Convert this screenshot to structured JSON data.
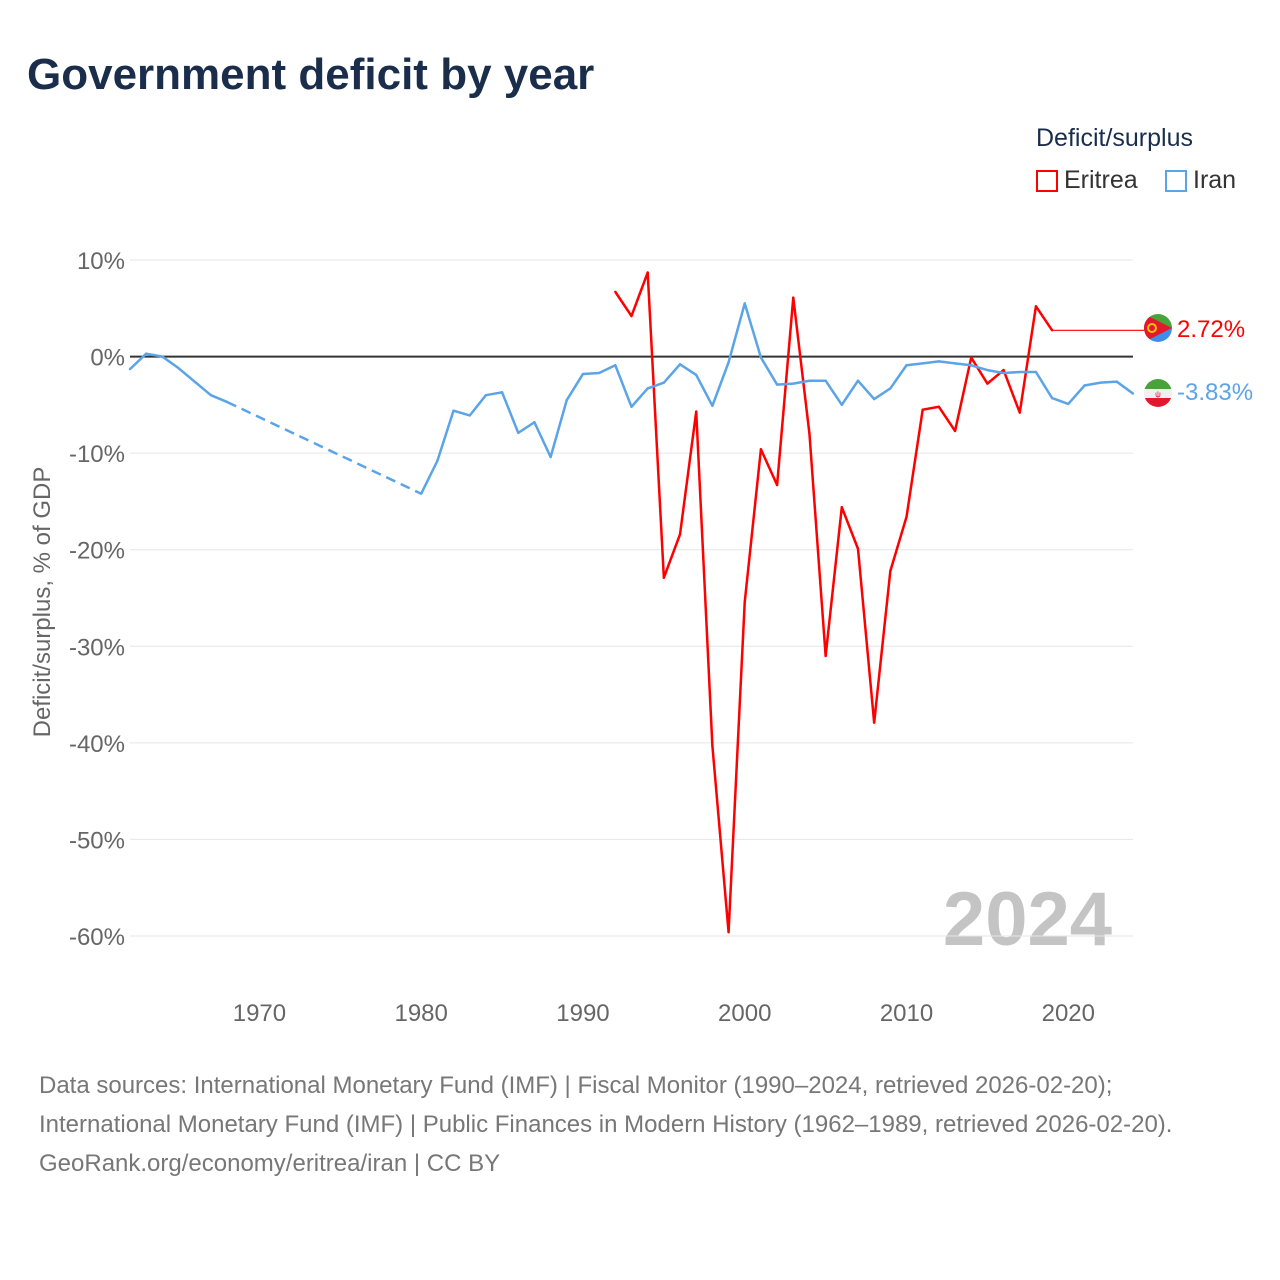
{
  "title": "Government deficit by year",
  "legend": {
    "title": "Deficit/surplus",
    "items": [
      {
        "name": "Eritrea",
        "color": "#ff0000"
      },
      {
        "name": "Iran",
        "color": "#5ba4e8"
      }
    ]
  },
  "watermark_year": "2024",
  "end_labels": {
    "eritrea": "2.72%",
    "iran": "-3.83%"
  },
  "flags": {
    "eritrea": "eritrea-flag-icon",
    "iran": "iran-flag-icon"
  },
  "sources": {
    "line1": "Data sources: International Monetary Fund (IMF) | Fiscal Monitor (1990–2024, retrieved 2026-02-20);",
    "line2": "International Monetary Fund (IMF) | Public Finances in Modern History (1962–1989, retrieved 2026-02-20).",
    "credit": "GeoRank.org/economy/eritrea/iran | CC BY"
  },
  "chart_data": {
    "type": "line",
    "title": "Government deficit by year",
    "xlabel": "",
    "ylabel": "Deficit/surplus, % of GDP",
    "xlim": [
      1962,
      2024
    ],
    "ylim": [
      -60,
      10
    ],
    "xticks": [
      1970,
      1980,
      1990,
      2000,
      2010,
      2020
    ],
    "xtick_labels": [
      "1970",
      "1980",
      "1990",
      "2000",
      "2010",
      "2020"
    ],
    "yticks": [
      10,
      0,
      -10,
      -20,
      -30,
      -40,
      -50,
      -60
    ],
    "ytick_labels": [
      "10%",
      "0%",
      "-10%",
      "-20%",
      "-30%",
      "-40%",
      "-50%",
      "-60%"
    ],
    "grid": true,
    "legend_position": "top-right",
    "series": [
      {
        "name": "Eritrea",
        "color": "#ff0000",
        "x": [
          1992,
          1993,
          1994,
          1995,
          1996,
          1997,
          1998,
          1999,
          2000,
          2001,
          2002,
          2003,
          2004,
          2005,
          2006,
          2007,
          2008,
          2009,
          2010,
          2011,
          2012,
          2013,
          2014,
          2015,
          2016,
          2017,
          2018,
          2019
        ],
        "values": [
          6.7,
          4.2,
          8.7,
          -22.9,
          -18.4,
          -5.7,
          -40.3,
          -59.6,
          -25.4,
          -9.6,
          -13.3,
          6.1,
          -8.0,
          -31.0,
          -15.6,
          -19.9,
          -37.9,
          -22.2,
          -16.6,
          -5.5,
          -5.2,
          -7.7,
          -0.1,
          -2.8,
          -1.4,
          -5.8,
          5.2,
          2.72
        ]
      },
      {
        "name": "Iran",
        "color": "#5ba4e8",
        "x": [
          1962,
          1963,
          1964,
          1965,
          1966,
          1967,
          1968,
          1980,
          1981,
          1982,
          1983,
          1984,
          1985,
          1986,
          1987,
          1988,
          1989,
          1990,
          1991,
          1992,
          1993,
          1994,
          1995,
          1996,
          1997,
          1998,
          1999,
          2000,
          2001,
          2002,
          2003,
          2004,
          2005,
          2006,
          2007,
          2008,
          2009,
          2010,
          2011,
          2012,
          2013,
          2014,
          2015,
          2016,
          2017,
          2018,
          2019,
          2020,
          2021,
          2022,
          2023,
          2024
        ],
        "values": [
          -1.3,
          0.3,
          0.0,
          -1.2,
          -2.6,
          -4.0,
          -4.7,
          -14.2,
          -10.8,
          -5.6,
          -6.1,
          -4.0,
          -3.7,
          -7.9,
          -6.8,
          -10.4,
          -4.5,
          -1.8,
          -1.7,
          -0.9,
          -5.2,
          -3.3,
          -2.7,
          -0.8,
          -1.9,
          -5.1,
          -0.6,
          5.5,
          -0.1,
          -2.9,
          -2.8,
          -2.5,
          -2.5,
          -5.0,
          -2.5,
          -4.4,
          -3.3,
          -0.9,
          -0.7,
          -0.5,
          -0.7,
          -0.9,
          -1.4,
          -1.7,
          -1.6,
          -1.6,
          -4.3,
          -4.9,
          -3.0,
          -2.7,
          -2.6,
          -3.83
        ]
      }
    ]
  }
}
